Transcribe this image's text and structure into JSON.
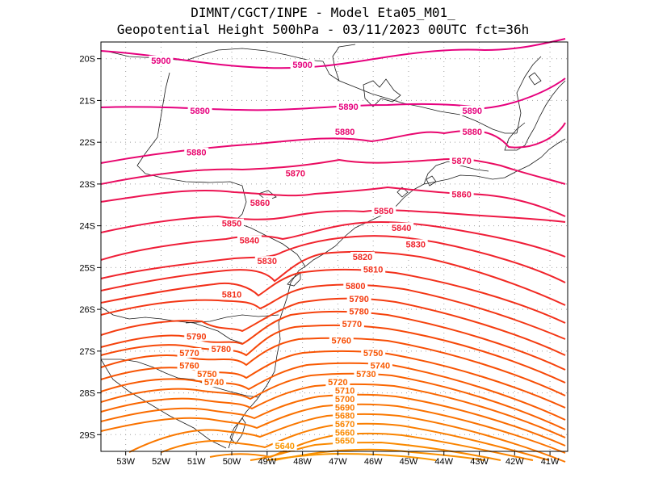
{
  "header": {
    "line1": "DIMNT/CGCT/INPE -  Model Eta05_M01_",
    "line2": "Geopotential Height 500hPa -  03/11/2023 00UTC fct=36h"
  },
  "map": {
    "lon_range": [
      -53.7,
      -40.5
    ],
    "lat_range": [
      -29.4,
      -19.6
    ],
    "lon_ticks": [
      {
        "lon": -53,
        "label": "53W"
      },
      {
        "lon": -52,
        "label": "52W"
      },
      {
        "lon": -51,
        "label": "51W"
      },
      {
        "lon": -50,
        "label": "50W"
      },
      {
        "lon": -49,
        "label": "49W"
      },
      {
        "lon": -48,
        "label": "48W"
      },
      {
        "lon": -47,
        "label": "47W"
      },
      {
        "lon": -46,
        "label": "46W"
      },
      {
        "lon": -45,
        "label": "45W"
      },
      {
        "lon": -44,
        "label": "44W"
      },
      {
        "lon": -43,
        "label": "43W"
      },
      {
        "lon": -42,
        "label": "42W"
      },
      {
        "lon": -41,
        "label": "41W"
      }
    ],
    "lat_ticks": [
      {
        "lat": -20,
        "label": "20S"
      },
      {
        "lat": -21,
        "label": "21S"
      },
      {
        "lat": -22,
        "label": "22S"
      },
      {
        "lat": -23,
        "label": "23S"
      },
      {
        "lat": -24,
        "label": "24S"
      },
      {
        "lat": -25,
        "label": "25S"
      },
      {
        "lat": -26,
        "label": "26S"
      },
      {
        "lat": -27,
        "label": "27S"
      },
      {
        "lat": -28,
        "label": "28S"
      },
      {
        "lat": -29,
        "label": "29S"
      }
    ],
    "contour_labels": [
      {
        "text": "5900",
        "lon": -52.0,
        "lat": -20.1,
        "color": "#e6007e"
      },
      {
        "text": "5900",
        "lon": -48.0,
        "lat": -20.2,
        "color": "#e6007e"
      },
      {
        "text": "5890",
        "lon": -50.9,
        "lat": -21.3,
        "color": "#e6007e"
      },
      {
        "text": "5890",
        "lon": -46.7,
        "lat": -21.2,
        "color": "#e6007e"
      },
      {
        "text": "5890",
        "lon": -43.2,
        "lat": -21.3,
        "color": "#e6007e"
      },
      {
        "text": "5880",
        "lon": -51.0,
        "lat": -22.3,
        "color": "#e8066f"
      },
      {
        "text": "5880",
        "lon": -46.8,
        "lat": -21.8,
        "color": "#e8066f"
      },
      {
        "text": "5880",
        "lon": -43.2,
        "lat": -21.8,
        "color": "#e8066f"
      },
      {
        "text": "5870",
        "lon": -48.2,
        "lat": -22.8,
        "color": "#ea0c60"
      },
      {
        "text": "5870",
        "lon": -43.5,
        "lat": -22.5,
        "color": "#ea0c60"
      },
      {
        "text": "5860",
        "lon": -49.2,
        "lat": -23.5,
        "color": "#ec1252"
      },
      {
        "text": "5860",
        "lon": -43.5,
        "lat": -23.3,
        "color": "#ec1252"
      },
      {
        "text": "5850",
        "lon": -50.0,
        "lat": -24.0,
        "color": "#ee1845"
      },
      {
        "text": "5850",
        "lon": -45.7,
        "lat": -23.7,
        "color": "#ee1845"
      },
      {
        "text": "5840",
        "lon": -49.5,
        "lat": -24.4,
        "color": "#ef1e38"
      },
      {
        "text": "5840",
        "lon": -45.2,
        "lat": -24.1,
        "color": "#ef1e38"
      },
      {
        "text": "5830",
        "lon": -49.0,
        "lat": -24.9,
        "color": "#f0242c"
      },
      {
        "text": "5830",
        "lon": -44.8,
        "lat": -24.5,
        "color": "#f0242c"
      },
      {
        "text": "5820",
        "lon": -46.3,
        "lat": -24.8,
        "color": "#f12a22"
      },
      {
        "text": "5810",
        "lon": -50.0,
        "lat": -25.7,
        "color": "#f2301a"
      },
      {
        "text": "5810",
        "lon": -46.0,
        "lat": -25.1,
        "color": "#f2301a"
      },
      {
        "text": "5800",
        "lon": -46.5,
        "lat": -25.5,
        "color": "#f33614"
      },
      {
        "text": "5790",
        "lon": -46.4,
        "lat": -25.8,
        "color": "#f43c10"
      },
      {
        "text": "5790",
        "lon": -51.0,
        "lat": -26.7,
        "color": "#f43c10"
      },
      {
        "text": "5780",
        "lon": -46.4,
        "lat": -26.1,
        "color": "#f5420c"
      },
      {
        "text": "5780",
        "lon": -50.3,
        "lat": -27.0,
        "color": "#f5420c"
      },
      {
        "text": "5770",
        "lon": -46.6,
        "lat": -26.4,
        "color": "#f64808"
      },
      {
        "text": "5770",
        "lon": -51.2,
        "lat": -27.1,
        "color": "#f64808"
      },
      {
        "text": "5760",
        "lon": -46.9,
        "lat": -26.8,
        "color": "#f74e05"
      },
      {
        "text": "5760",
        "lon": -51.2,
        "lat": -27.4,
        "color": "#f74e05"
      },
      {
        "text": "5750",
        "lon": -46.0,
        "lat": -27.1,
        "color": "#f85403"
      },
      {
        "text": "5750",
        "lon": -50.7,
        "lat": -27.6,
        "color": "#f85403"
      },
      {
        "text": "5740",
        "lon": -45.8,
        "lat": -27.4,
        "color": "#f95a02"
      },
      {
        "text": "5740",
        "lon": -50.5,
        "lat": -27.8,
        "color": "#f95a02"
      },
      {
        "text": "5730",
        "lon": -46.2,
        "lat": -27.6,
        "color": "#f96001"
      },
      {
        "text": "5720",
        "lon": -47.0,
        "lat": -27.8,
        "color": "#fa6600"
      },
      {
        "text": "5710",
        "lon": -46.8,
        "lat": -28.0,
        "color": "#fa6c00"
      },
      {
        "text": "5700",
        "lon": -46.8,
        "lat": -28.2,
        "color": "#fa7200"
      },
      {
        "text": "5690",
        "lon": -46.8,
        "lat": -28.4,
        "color": "#fa7800"
      },
      {
        "text": "5680",
        "lon": -46.8,
        "lat": -28.6,
        "color": "#fa7e00"
      },
      {
        "text": "5670",
        "lon": -46.8,
        "lat": -28.8,
        "color": "#fa8400"
      },
      {
        "text": "5660",
        "lon": -46.8,
        "lat": -29.0,
        "color": "#fa8a00"
      },
      {
        "text": "5650",
        "lon": -46.8,
        "lat": -29.2,
        "color": "#fa9000"
      },
      {
        "text": "5640",
        "lon": -48.5,
        "lat": -29.6,
        "color": "#fa9600"
      }
    ]
  }
}
